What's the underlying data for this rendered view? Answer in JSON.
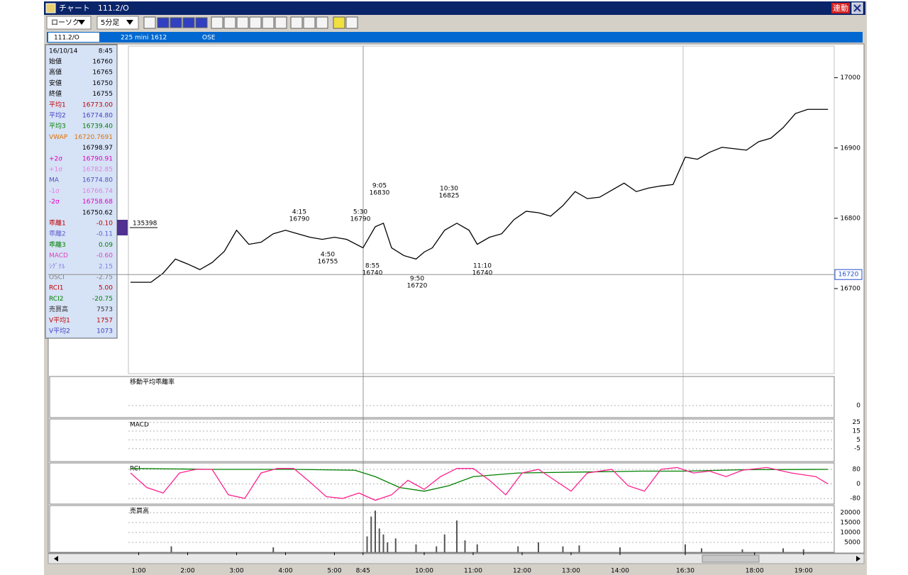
{
  "window": {
    "title": "チャート　111.2/O",
    "sync_button": "連動"
  },
  "toolbar": {
    "chart_style": "ローソク",
    "interval": "5分足"
  },
  "header": {
    "code": "111.2/O",
    "name": "225 mini 1612",
    "exchange": "OSE"
  },
  "info_panel": {
    "date": "16/10/14",
    "time": "8:45",
    "rows": [
      {
        "label": "始値",
        "value": "16760",
        "color": "#000000"
      },
      {
        "label": "高値",
        "value": "16765",
        "color": "#000000"
      },
      {
        "label": "安値",
        "value": "16750",
        "color": "#000000"
      },
      {
        "label": "終値",
        "value": "16755",
        "color": "#000000"
      },
      {
        "label": "平均1",
        "value": "16773.00",
        "color": "#c00000"
      },
      {
        "label": "平均2",
        "value": "16774.80",
        "color": "#4040c0"
      },
      {
        "label": "平均3",
        "value": "16739.40",
        "color": "#008000"
      },
      {
        "label": "VWAP",
        "value": "16720.7691",
        "color": "#e07000"
      },
      {
        "value": "16798.97",
        "color": "#000000"
      },
      {
        "label": "+2σ",
        "value": "16790.91",
        "color": "#e000c0"
      },
      {
        "label": "+1σ",
        "value": "16782.85",
        "color": "#e080e0"
      },
      {
        "label": "MA",
        "value": "16774.80",
        "color": "#5050c0"
      },
      {
        "label": "-1σ",
        "value": "16766.74",
        "color": "#e080e0"
      },
      {
        "label": "-2σ",
        "value": "16758.68",
        "color": "#e000c0"
      },
      {
        "value": "16750.62",
        "color": "#000000"
      },
      {
        "label": "乖離1",
        "value": "-0.10",
        "color": "#c00000"
      },
      {
        "label": "乖離2",
        "value": "-0.11",
        "color": "#6060d0"
      },
      {
        "label": "乖離3",
        "value": "0.09",
        "color": "#008000"
      },
      {
        "label": "MACD",
        "value": "-0.60",
        "color": "#e040c0"
      },
      {
        "label": "ｼｸﾞﾅﾙ",
        "value": "2.15",
        "color": "#8080e0"
      },
      {
        "label": "OSCI",
        "value": "-2.75",
        "color": "#808080"
      },
      {
        "label": "RCI1",
        "value": "5.00",
        "color": "#c00000"
      },
      {
        "label": "RCI2",
        "value": "-20.75",
        "color": "#008000"
      },
      {
        "label": "売買高",
        "value": "7573",
        "color": "#333333"
      },
      {
        "label": "V平均1",
        "value": "1757",
        "color": "#c00000"
      },
      {
        "label": "V平均2",
        "value": "1073",
        "color": "#4040c0"
      }
    ]
  },
  "chart_data": [
    {
      "type": "line",
      "ylim": [
        16579,
        17045
      ],
      "yticks": [
        16700,
        16800,
        16900,
        17000
      ],
      "xticks": [
        {
          "value": 2,
          "label": "1:00"
        },
        {
          "value": 14,
          "label": "2:00"
        },
        {
          "value": 26,
          "label": "3:00"
        },
        {
          "value": 38,
          "label": "4:00"
        },
        {
          "value": 50,
          "label": "5:00"
        },
        {
          "value": 57,
          "label": "8:45"
        },
        {
          "value": 72,
          "label": "10:00"
        },
        {
          "value": 84,
          "label": "11:00"
        },
        {
          "value": 96,
          "label": "12:00"
        },
        {
          "value": 108,
          "label": "13:00"
        },
        {
          "value": 120,
          "label": "14:00"
        },
        {
          "value": 136,
          "label": "16:30"
        },
        {
          "value": 153,
          "label": "18:00"
        },
        {
          "value": 165,
          "label": "19:00"
        }
      ],
      "x": [
        0,
        5,
        8,
        11,
        14,
        17,
        20,
        23,
        26,
        29,
        32,
        35,
        38,
        41,
        44,
        47,
        50,
        53,
        57,
        60,
        62,
        64,
        67,
        70,
        72,
        74,
        77,
        80,
        83,
        85,
        88,
        91,
        94,
        97,
        100,
        103,
        106,
        109,
        112,
        115,
        118,
        121,
        124,
        127,
        130,
        133,
        136,
        139,
        142,
        145,
        148,
        151,
        154,
        157,
        160,
        163,
        166,
        169,
        171
      ],
      "values": [
        16709,
        16709,
        16722,
        16742,
        16735,
        16727,
        16737,
        16753,
        16783,
        16763,
        16766,
        16778,
        16783,
        16778,
        16773,
        16770,
        16773,
        16770,
        16758,
        16788,
        16793,
        16758,
        16747,
        16742,
        16752,
        16758,
        16783,
        16793,
        16783,
        16763,
        16773,
        16778,
        16798,
        16810,
        16808,
        16803,
        16818,
        16838,
        16828,
        16830,
        16840,
        16850,
        16838,
        16843,
        16846,
        16848,
        16887,
        16884,
        16894,
        16901,
        16899,
        16897,
        16909,
        16914,
        16929,
        16949,
        16955,
        16955,
        16955
      ],
      "color": "#000000",
      "current_price": 16720,
      "left_marker": 135398,
      "annotations": [
        {
          "time": "4:15",
          "price": 16790
        },
        {
          "time": "5:30",
          "price": 16790
        },
        {
          "time": "4:50",
          "price": 16755
        },
        {
          "time": "9:05",
          "price": 16830
        },
        {
          "time": "8:55",
          "price": 16740
        },
        {
          "time": "9:50",
          "price": 16720
        },
        {
          "time": "10:30",
          "price": 16825
        },
        {
          "time": "11:10",
          "price": 16740
        }
      ]
    },
    {
      "type": "line",
      "title": "移動平均乖離率",
      "ylim": [
        -0.2,
        0.5
      ],
      "yticks": [
        0
      ]
    },
    {
      "type": "line",
      "title": "MACD",
      "ylim": [
        -19,
        28
      ],
      "yticks": [
        25,
        15,
        5,
        -5
      ]
    },
    {
      "type": "line",
      "title": "RCI",
      "ylim": [
        -107,
        111
      ],
      "yticks": [
        80,
        0,
        -80
      ],
      "series": [
        {
          "color": "#008000",
          "x": [
            0,
            20,
            40,
            55,
            60,
            66,
            72,
            78,
            84,
            95,
            110,
            125,
            136,
            150,
            171
          ],
          "values": [
            85,
            80,
            80,
            75,
            40,
            -20,
            -40,
            -10,
            40,
            60,
            65,
            70,
            70,
            78,
            80
          ]
        },
        {
          "color": "#ff2090",
          "x": [
            0,
            4,
            8,
            12,
            16,
            20,
            24,
            28,
            32,
            36,
            40,
            44,
            48,
            52,
            56,
            60,
            64,
            68,
            72,
            76,
            80,
            84,
            88,
            92,
            96,
            100,
            104,
            108,
            112,
            118,
            122,
            126,
            130,
            134,
            138,
            142,
            146,
            150,
            156,
            162,
            168,
            171
          ],
          "values": [
            60,
            -20,
            -50,
            60,
            80,
            80,
            -60,
            -80,
            60,
            85,
            85,
            10,
            -70,
            -80,
            -50,
            -90,
            -60,
            20,
            -30,
            40,
            85,
            85,
            20,
            -60,
            60,
            80,
            20,
            -40,
            60,
            80,
            -10,
            -40,
            80,
            90,
            60,
            70,
            40,
            75,
            90,
            60,
            40,
            0
          ]
        }
      ]
    },
    {
      "type": "bar",
      "title": "売買高",
      "ylim": [
        0,
        23200
      ],
      "yticks": [
        20000,
        15000,
        10000,
        5000
      ],
      "x": [
        10,
        35,
        58,
        59,
        60,
        61,
        62,
        63,
        65,
        70,
        75,
        77,
        80,
        82,
        85,
        95,
        100,
        106,
        110,
        120,
        136,
        140,
        150,
        160,
        165
      ],
      "values": [
        3000,
        2500,
        8000,
        18000,
        21000,
        12000,
        9000,
        5000,
        7000,
        4000,
        3000,
        9000,
        16000,
        6000,
        4000,
        3000,
        5000,
        3000,
        3500,
        2500,
        4000,
        2000,
        1500,
        2000,
        1500
      ],
      "color": "#555555"
    }
  ]
}
